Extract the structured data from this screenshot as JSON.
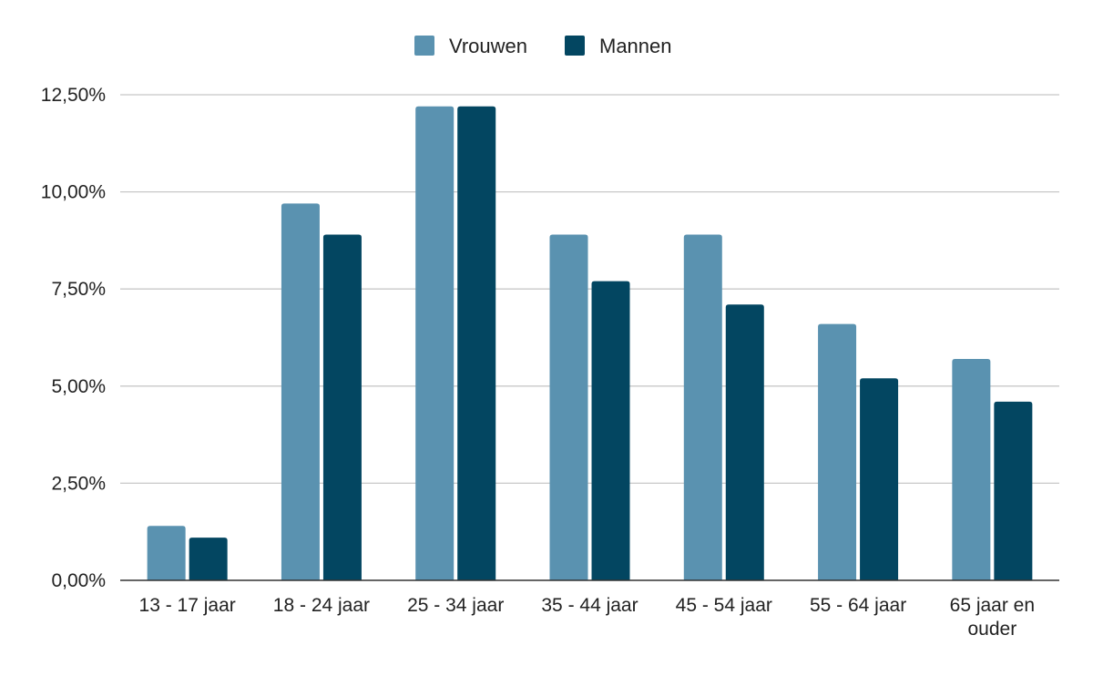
{
  "chart_data": {
    "type": "bar",
    "categories": [
      [
        "13 - 17 jaar"
      ],
      [
        "18 - 24 jaar"
      ],
      [
        "25 - 34 jaar"
      ],
      [
        "35 - 44 jaar"
      ],
      [
        "45 - 54 jaar"
      ],
      [
        "55 - 64 jaar"
      ],
      [
        "65 jaar en",
        "ouder"
      ]
    ],
    "series": [
      {
        "name": "Vrouwen",
        "color": "#5a92b0",
        "values": [
          1.4,
          9.7,
          12.2,
          8.9,
          8.9,
          6.6,
          5.7
        ]
      },
      {
        "name": "Mannen",
        "color": "#034661",
        "values": [
          1.1,
          8.9,
          12.2,
          7.7,
          7.1,
          5.2,
          4.6
        ]
      }
    ],
    "y_ticks": [
      "0,00%",
      "2,50%",
      "5,00%",
      "7,50%",
      "10,00%",
      "12,50%"
    ],
    "ylim": [
      0,
      12.5
    ],
    "grid": true,
    "legend_position": "top-center"
  }
}
